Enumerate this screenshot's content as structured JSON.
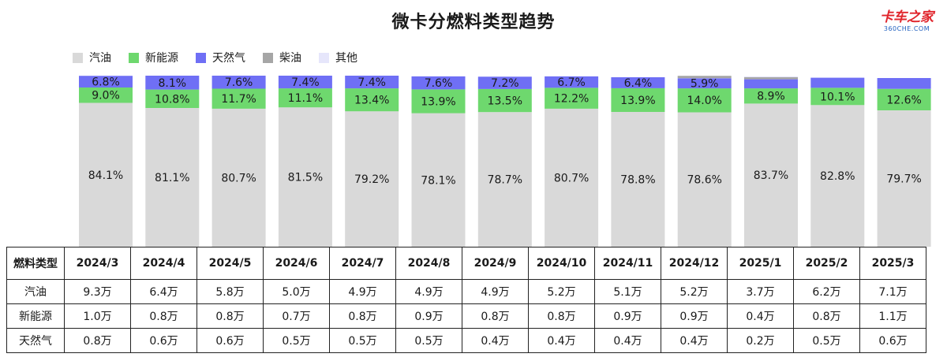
{
  "title": "微卡分燃料类型趋势",
  "logo": {
    "text": "卡车之家",
    "sub": "360CHE.COM"
  },
  "chart_data": {
    "type": "bar",
    "stacked": true,
    "normalized": true,
    "legend_position": "top-left",
    "categories": [
      "2024/3",
      "2024/4",
      "2024/5",
      "2024/6",
      "2024/7",
      "2024/8",
      "2024/9",
      "2024/10",
      "2024/11",
      "2024/12",
      "2025/1",
      "2025/2",
      "2025/3"
    ],
    "series": [
      {
        "name": "汽油",
        "color": "#d9d9d9",
        "values": [
          84.1,
          81.1,
          80.7,
          81.5,
          79.2,
          78.1,
          78.7,
          80.7,
          78.8,
          78.6,
          83.7,
          82.8,
          79.7
        ],
        "labels": [
          "84.1%",
          "81.1%",
          "80.7%",
          "81.5%",
          "79.2%",
          "78.1%",
          "78.7%",
          "80.7%",
          "78.8%",
          "78.6%",
          "83.7%",
          "82.8%",
          "79.7%"
        ]
      },
      {
        "name": "新能源",
        "color": "#6ed86e",
        "values": [
          9.0,
          10.8,
          11.7,
          11.1,
          13.4,
          13.9,
          13.5,
          12.2,
          13.9,
          14.0,
          8.9,
          10.1,
          12.6
        ],
        "labels": [
          "9.0%",
          "10.8%",
          "11.7%",
          "11.1%",
          "13.4%",
          "13.9%",
          "13.5%",
          "12.2%",
          "13.9%",
          "14.0%",
          "8.9%",
          "10.1%",
          "12.6%"
        ]
      },
      {
        "name": "天然气",
        "color": "#6f6ff5",
        "values": [
          6.8,
          8.1,
          7.6,
          7.4,
          7.4,
          7.6,
          7.2,
          6.7,
          6.4,
          5.9,
          5.3,
          5.9,
          6.3
        ],
        "labels": [
          "6.8%",
          "8.1%",
          "7.6%",
          "7.4%",
          "7.4%",
          "7.6%",
          "7.2%",
          "6.7%",
          "6.4%",
          "5.9%",
          "",
          "",
          ""
        ]
      },
      {
        "name": "柴油",
        "color": "#a6a6a6",
        "values": [
          0,
          0,
          0,
          0,
          0,
          0,
          0,
          0,
          0,
          1.4,
          1.2,
          0,
          0
        ],
        "labels": [
          "",
          "",
          "",
          "",
          "",
          "",
          "",
          "",
          "",
          "",
          "",
          "",
          ""
        ]
      },
      {
        "name": "其他",
        "color": "#e6e6fb",
        "values": [
          0,
          0,
          0,
          0,
          0,
          0,
          0,
          0,
          0,
          0,
          0.5,
          0,
          0
        ],
        "labels": [
          "",
          "",
          "",
          "",
          "",
          "",
          "",
          "",
          "",
          "",
          "",
          "",
          ""
        ]
      }
    ],
    "ylim": [
      0,
      100
    ],
    "xlabel": "",
    "ylabel": ""
  },
  "table": {
    "corner": "燃料类型",
    "columns": [
      "2024/3",
      "2024/4",
      "2024/5",
      "2024/6",
      "2024/7",
      "2024/8",
      "2024/9",
      "2024/10",
      "2024/11",
      "2024/12",
      "2025/1",
      "2025/2",
      "2025/3"
    ],
    "rows": [
      {
        "label": "汽油",
        "values": [
          "9.3万",
          "6.4万",
          "5.8万",
          "5.0万",
          "4.9万",
          "4.9万",
          "4.9万",
          "5.2万",
          "5.1万",
          "5.2万",
          "3.7万",
          "6.2万",
          "7.1万"
        ]
      },
      {
        "label": "新能源",
        "values": [
          "1.0万",
          "0.8万",
          "0.8万",
          "0.7万",
          "0.8万",
          "0.9万",
          "0.8万",
          "0.8万",
          "0.9万",
          "0.9万",
          "0.4万",
          "0.8万",
          "1.1万"
        ]
      },
      {
        "label": "天然气",
        "values": [
          "0.8万",
          "0.6万",
          "0.6万",
          "0.5万",
          "0.5万",
          "0.5万",
          "0.4万",
          "0.4万",
          "0.4万",
          "0.4万",
          "0.2万",
          "0.5万",
          "0.6万"
        ]
      }
    ]
  }
}
